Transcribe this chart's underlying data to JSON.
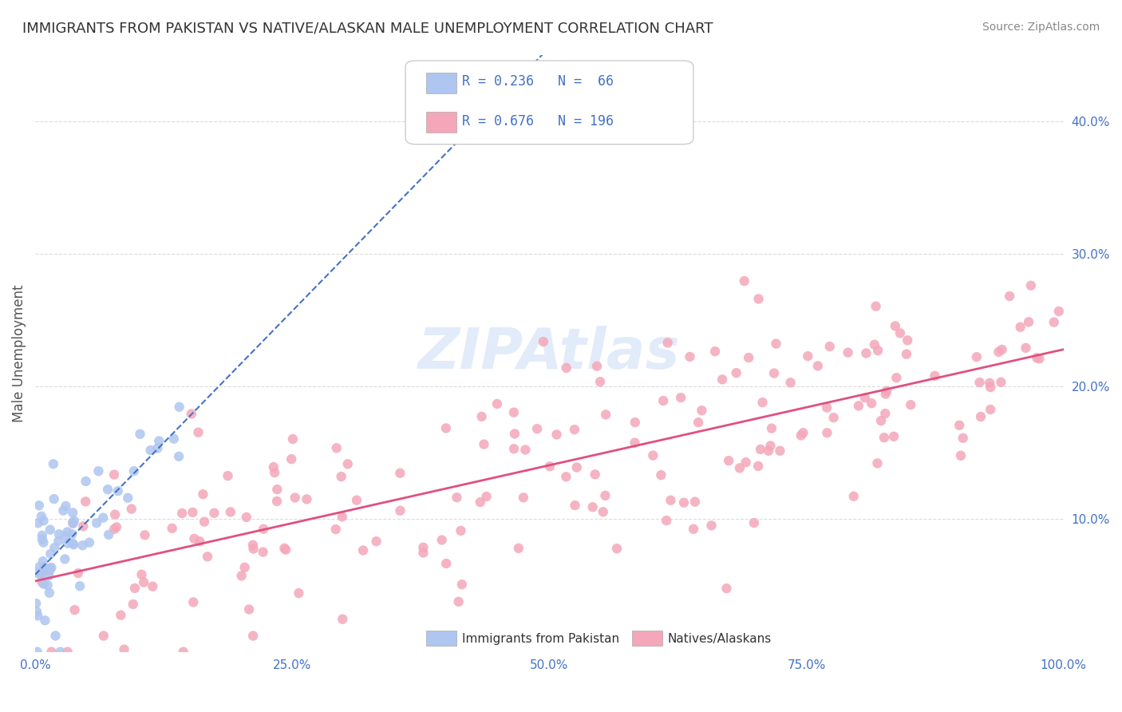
{
  "title": "IMMIGRANTS FROM PAKISTAN VS NATIVE/ALASKAN MALE UNEMPLOYMENT CORRELATION CHART",
  "source": "Source: ZipAtlas.com",
  "xlabel": "",
  "ylabel": "Male Unemployment",
  "watermark": "ZIPAtlas",
  "series1": {
    "name": "Immigrants from Pakistan",
    "R": 0.236,
    "N": 66,
    "color": "#aec6f0",
    "line_color": "#4472c4",
    "line_style": "--"
  },
  "series2": {
    "name": "Natives/Alaskans",
    "R": 0.676,
    "N": 196,
    "color": "#f4a7b9",
    "line_color": "#e05080",
    "line_style": "-"
  },
  "xlim": [
    0.0,
    1.0
  ],
  "ylim": [
    0.0,
    0.45
  ],
  "yticks": [
    0.0,
    0.1,
    0.2,
    0.3,
    0.4
  ],
  "ytick_labels": [
    "",
    "10.0%",
    "20.0%",
    "30.0%",
    "40.0%"
  ],
  "xticks": [
    0.0,
    0.25,
    0.5,
    0.75,
    1.0
  ],
  "xtick_labels": [
    "0.0%",
    "25.0%",
    "50.0%",
    "75.0%",
    "100.0%"
  ],
  "background_color": "#ffffff",
  "grid_color": "#cccccc",
  "tick_color": "#4472c4",
  "title_color": "#333333",
  "source_color": "#888888",
  "legend_R_N_color": "#4472c4",
  "figsize": [
    14.06,
    8.92
  ],
  "dpi": 100,
  "seed1": 42,
  "seed2": 99
}
